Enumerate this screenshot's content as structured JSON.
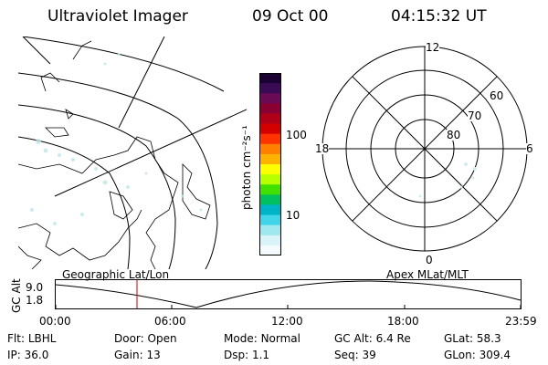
{
  "header": {
    "instrument": "Ultraviolet Imager",
    "date": "09 Oct 00",
    "time": "04:15:32 UT"
  },
  "colorbar": {
    "unit_label": "photon cm⁻²s⁻¹",
    "ticks": [
      "100",
      "10"
    ],
    "colors": [
      "#1a0033",
      "#3a0a55",
      "#6a0a55",
      "#8a0033",
      "#b00018",
      "#d40000",
      "#ff3300",
      "#ff7f00",
      "#ffb300",
      "#ffff00",
      "#b8ff00",
      "#40e000",
      "#00c060",
      "#00b4c8",
      "#40d4e8",
      "#a0e8f0",
      "#d8f4f8",
      "#f4fbfc"
    ]
  },
  "polar_plot": {
    "mlt_labels": {
      "top": "12",
      "bottom": "0",
      "left": "18",
      "right": "6"
    },
    "lat_labels": [
      "60",
      "70",
      "80"
    ]
  },
  "timeline": {
    "left_title": "Geographic Lat/Lon",
    "right_title": "Apex MLat/MLT",
    "y_label": "GC Alt",
    "y_ticks": [
      "9.0",
      "1.8"
    ],
    "x_ticks": [
      "00:00",
      "06:00",
      "12:00",
      "18:00",
      "23:59"
    ],
    "marker_color": "#cc0000"
  },
  "status": {
    "row1": [
      {
        "label": "Flt:",
        "value": "LBHL"
      },
      {
        "label": "Door:",
        "value": "Open"
      },
      {
        "label": "Mode:",
        "value": "Normal"
      },
      {
        "label": "GC Alt:",
        "value": "6.4 Re"
      },
      {
        "label": "GLat:",
        "value": "58.3"
      }
    ],
    "row2": [
      {
        "label": "IP:",
        "value": "36.0"
      },
      {
        "label": "Gain:",
        "value": "13"
      },
      {
        "label": "Dsp:",
        "value": "1.1"
      },
      {
        "label": "Seq:",
        "value": "39"
      },
      {
        "label": "GLon:",
        "value": "309.4"
      }
    ]
  }
}
